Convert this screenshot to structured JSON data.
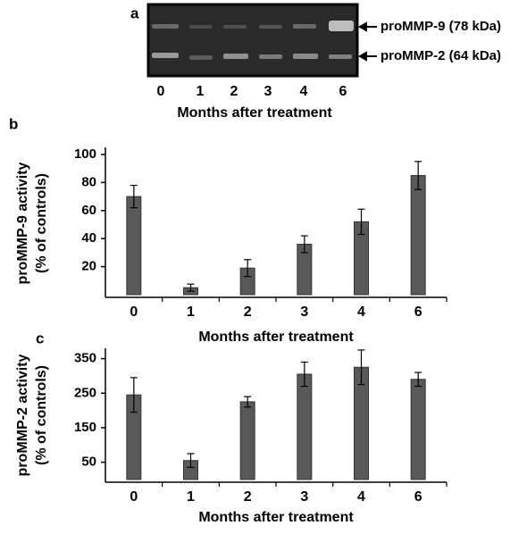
{
  "gel": {
    "panel_label": "a",
    "bands": [
      "proMMP-9 (78 kDa)",
      "proMMP-2 (64 kDa)"
    ],
    "lanes": [
      "0",
      "1",
      "2",
      "3",
      "4",
      "6"
    ],
    "xlabel": "Months after treatment"
  },
  "chart_data": [
    {
      "type": "bar",
      "panel_label": "b",
      "categories": [
        "0",
        "1",
        "2",
        "3",
        "4",
        "6"
      ],
      "values": [
        70,
        5,
        19,
        36,
        52,
        85
      ],
      "errors": [
        8,
        2.5,
        6,
        6,
        9,
        10
      ],
      "color": "#595959",
      "ylabel": [
        "proMMP-9 activity",
        "(% of controls)"
      ],
      "xlabel": "Months after treatment",
      "ylim": [
        0,
        100
      ],
      "yticks": [
        20,
        40,
        60,
        80,
        100
      ]
    },
    {
      "type": "bar",
      "panel_label": "c",
      "categories": [
        "0",
        "1",
        "2",
        "3",
        "4",
        "6"
      ],
      "values": [
        245,
        55,
        225,
        305,
        325,
        290
      ],
      "errors": [
        50,
        20,
        15,
        35,
        50,
        20
      ],
      "color": "#595959",
      "ylabel": [
        "proMMP-2 activity",
        "(% of controls)"
      ],
      "xlabel": "Months after treatment",
      "ylim": [
        0,
        380
      ],
      "yticks": [
        50,
        150,
        250,
        350
      ]
    }
  ]
}
